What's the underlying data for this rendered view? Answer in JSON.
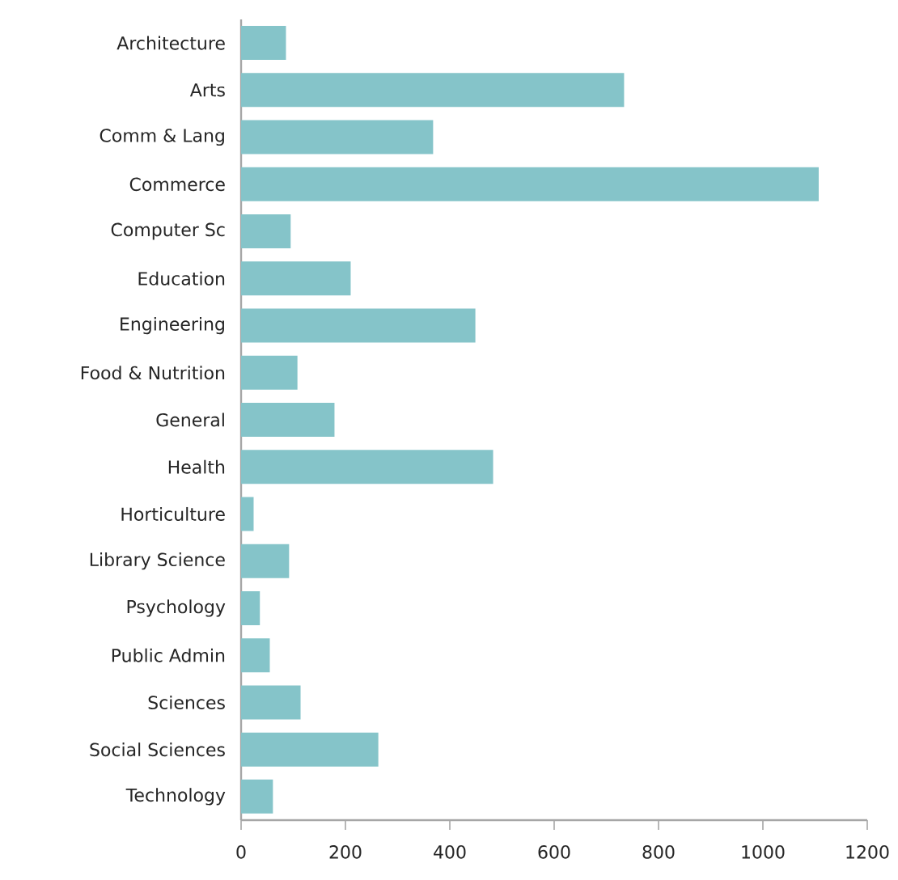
{
  "chart_data": {
    "type": "bar",
    "orientation": "horizontal",
    "categories": [
      "Architecture",
      "Arts",
      "Comm & Lang",
      "Commerce",
      "Computer Sc",
      "Education",
      "Engineering",
      "Food & Nutrition",
      "General",
      "Health",
      "Horticulture",
      "Library Science",
      "Psychology",
      "Public Admin",
      "Sciences",
      "Social Sciences",
      "Technology"
    ],
    "values": [
      86,
      734,
      368,
      1107,
      95,
      210,
      449,
      108,
      179,
      483,
      24,
      92,
      36,
      55,
      114,
      263,
      61
    ],
    "color": "#85c4c9",
    "xlim": [
      0,
      1200
    ],
    "xticks": [
      0,
      200,
      400,
      600,
      800,
      1000,
      1200
    ]
  }
}
